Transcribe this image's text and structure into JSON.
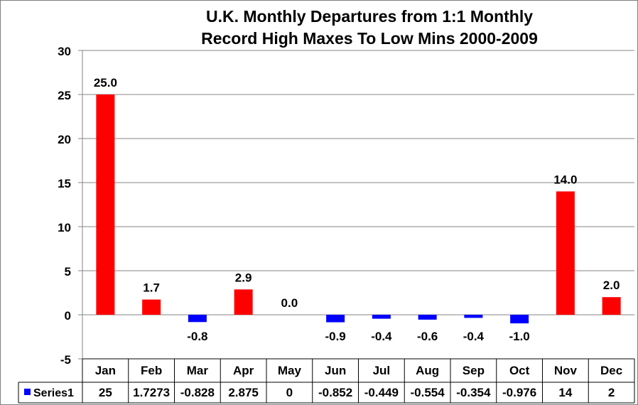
{
  "chart_data": {
    "type": "bar",
    "title_lines": [
      "U.K. Monthly Departures from 1:1 Monthly",
      "Record High Maxes To Low Mins 2000-2009"
    ],
    "categories": [
      "Jan",
      "Feb",
      "Mar",
      "Apr",
      "May",
      "Jun",
      "Jul",
      "Aug",
      "Sep",
      "Oct",
      "Nov",
      "Dec"
    ],
    "series": [
      {
        "name": "Series1",
        "values": [
          25,
          1.7273,
          -0.828,
          2.875,
          0,
          -0.852,
          -0.449,
          -0.554,
          -0.354,
          -0.976,
          14,
          2
        ],
        "data_labels": [
          "25.0",
          "1.7",
          "-0.8",
          "2.9",
          "0.0",
          "-0.9",
          "-0.4",
          "-0.6",
          "-0.4",
          "-1.0",
          "14.0",
          "2.0"
        ],
        "table_values": [
          "25",
          "1.7273",
          "-0.828",
          "2.875",
          "0",
          "-0.852",
          "-0.449",
          "-0.554",
          "-0.354",
          "-0.976",
          "14",
          "2"
        ]
      }
    ],
    "positive_color": "#ff0000",
    "negative_color": "#0000ff",
    "legend_color": "#0000ff",
    "ylim": [
      -5,
      30
    ],
    "yticks": [
      -5,
      0,
      5,
      10,
      15,
      20,
      25,
      30
    ],
    "grid": true,
    "data_table": true
  }
}
